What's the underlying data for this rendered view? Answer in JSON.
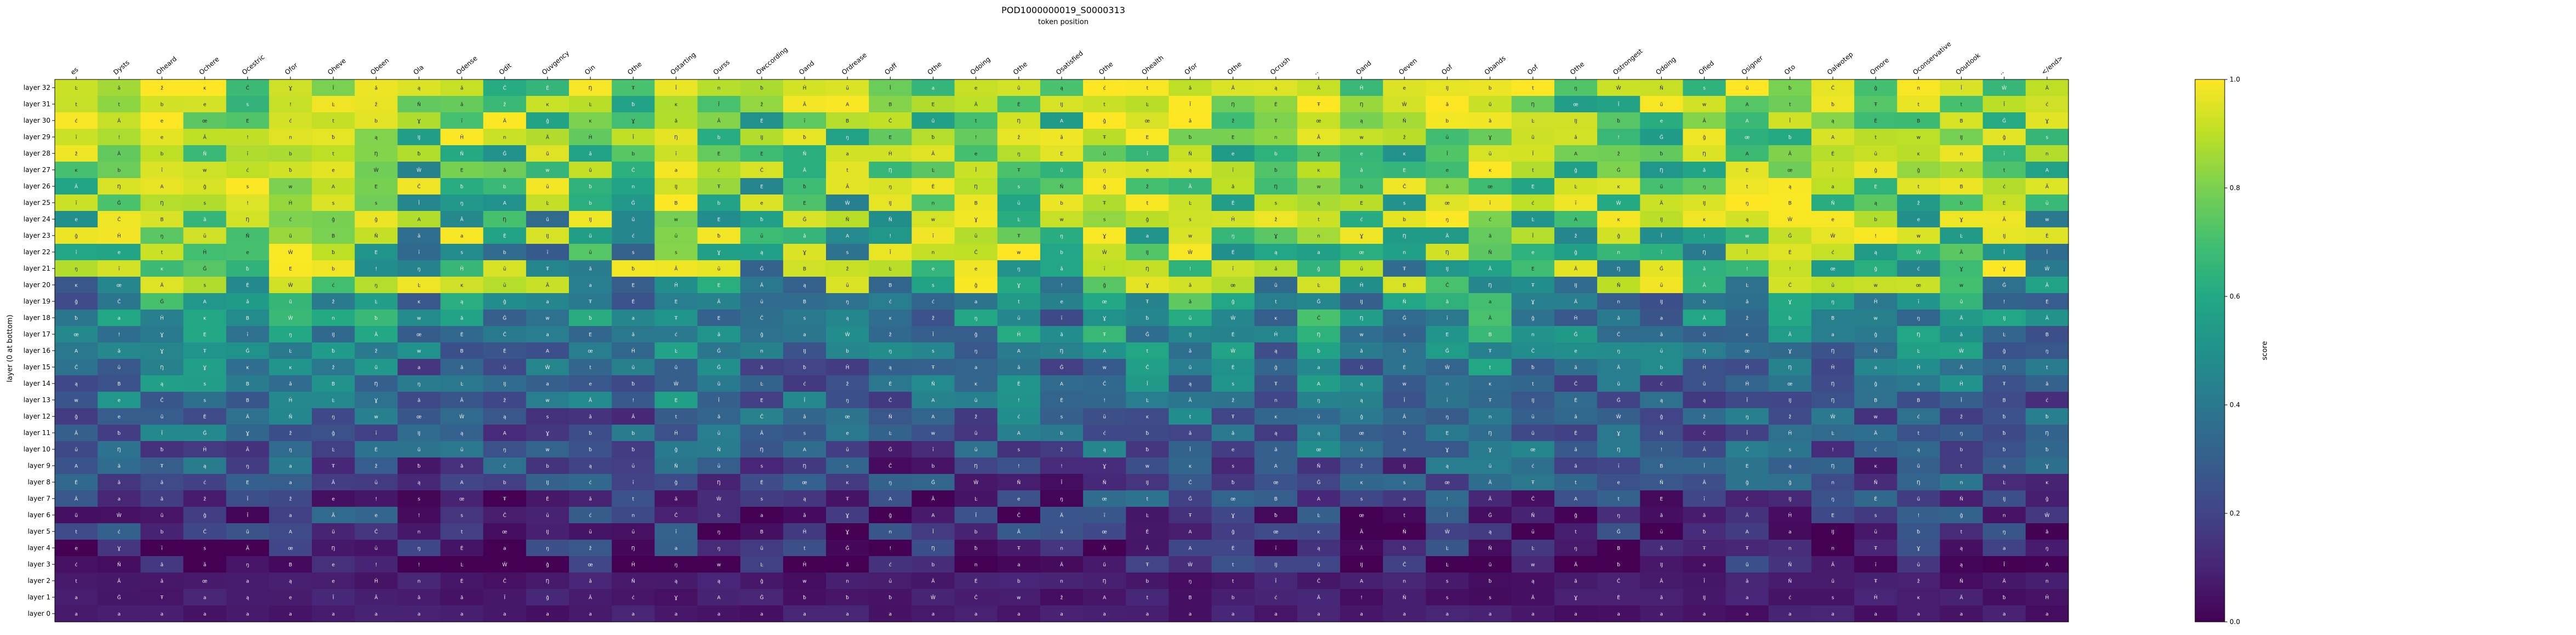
{
  "chart_data": {
    "type": "heatmap",
    "title": "POD1000000019_S0000313",
    "subtitle": "token position",
    "ylabel": "layer (0 at bottom)",
    "colorbar_label": "score",
    "colorbar_ticks": [
      "0.0",
      "0.2",
      "0.4",
      "0.6",
      "0.8",
      "1.0"
    ],
    "value_range": [
      0,
      1
    ],
    "colormap": "viridis",
    "x_categories": [
      "es",
      "Dysts",
      "Oheard",
      "Ochere",
      "Ocestric",
      "Ofor",
      "Oheve",
      "Obeen",
      "Ola",
      "Odense",
      "Odit",
      "Ouvgency",
      "Oin",
      "Othe",
      "Ostarting",
      "Ourss",
      "Owccording",
      "Oand",
      "Ordrease",
      "Ooff",
      "Othe",
      "Odoing",
      "Othe",
      "Osatisfied",
      "Othe",
      "Ohealth",
      "Ofor",
      "Othe",
      "Ocrush",
      "..",
      "Oand",
      "Oeven",
      "Oof",
      "Obands",
      "Oof",
      "Othe",
      "Ostrongest",
      "Odoing",
      "Ofied",
      "Osigner",
      "Oto",
      "Oalwotep",
      "Omore",
      "Oconservative",
      "Ooutlook",
      "..",
      "</end>"
    ],
    "y_categories": [
      "layer 32",
      "layer 31",
      "layer 30",
      "layer 29",
      "layer 28",
      "layer 27",
      "layer 26",
      "layer 25",
      "layer 24",
      "layer 23",
      "layer 22",
      "layer 21",
      "layer 20",
      "layer 19",
      "layer 18",
      "layer 17",
      "layer 16",
      "layer 15",
      "layer 14",
      "layer 13",
      "layer 12",
      "layer 11",
      "layer 10",
      "layer 9",
      "layer 8",
      "layer 7",
      "layer 6",
      "layer 5",
      "layer 4",
      "layer 3",
      "layer 2",
      "layer 1",
      "layer 0"
    ],
    "cell_token_pool": [
      "a",
      "A",
      "E",
      "Ä",
      "Ā",
      "B",
      "Ĉ",
      "Ė",
      "Ĝ",
      "Ĥ",
      "Ī",
      "Ĳ",
      "ĸ",
      "Ŀ",
      "Ň",
      "Ŋ",
      "ū",
      "Ŵ",
      "ž",
      "ƀ",
      "ī",
      "ą",
      "ć",
      "ĝ",
      "œ",
      "Ŧ",
      "ă",
      "ǎ",
      "Ɣ",
      "w",
      "e",
      "n",
      "s",
      "t",
      "b",
      "ŋ",
      "ũ",
      "!"
    ],
    "grid": false,
    "legend": "colorbar-right"
  }
}
